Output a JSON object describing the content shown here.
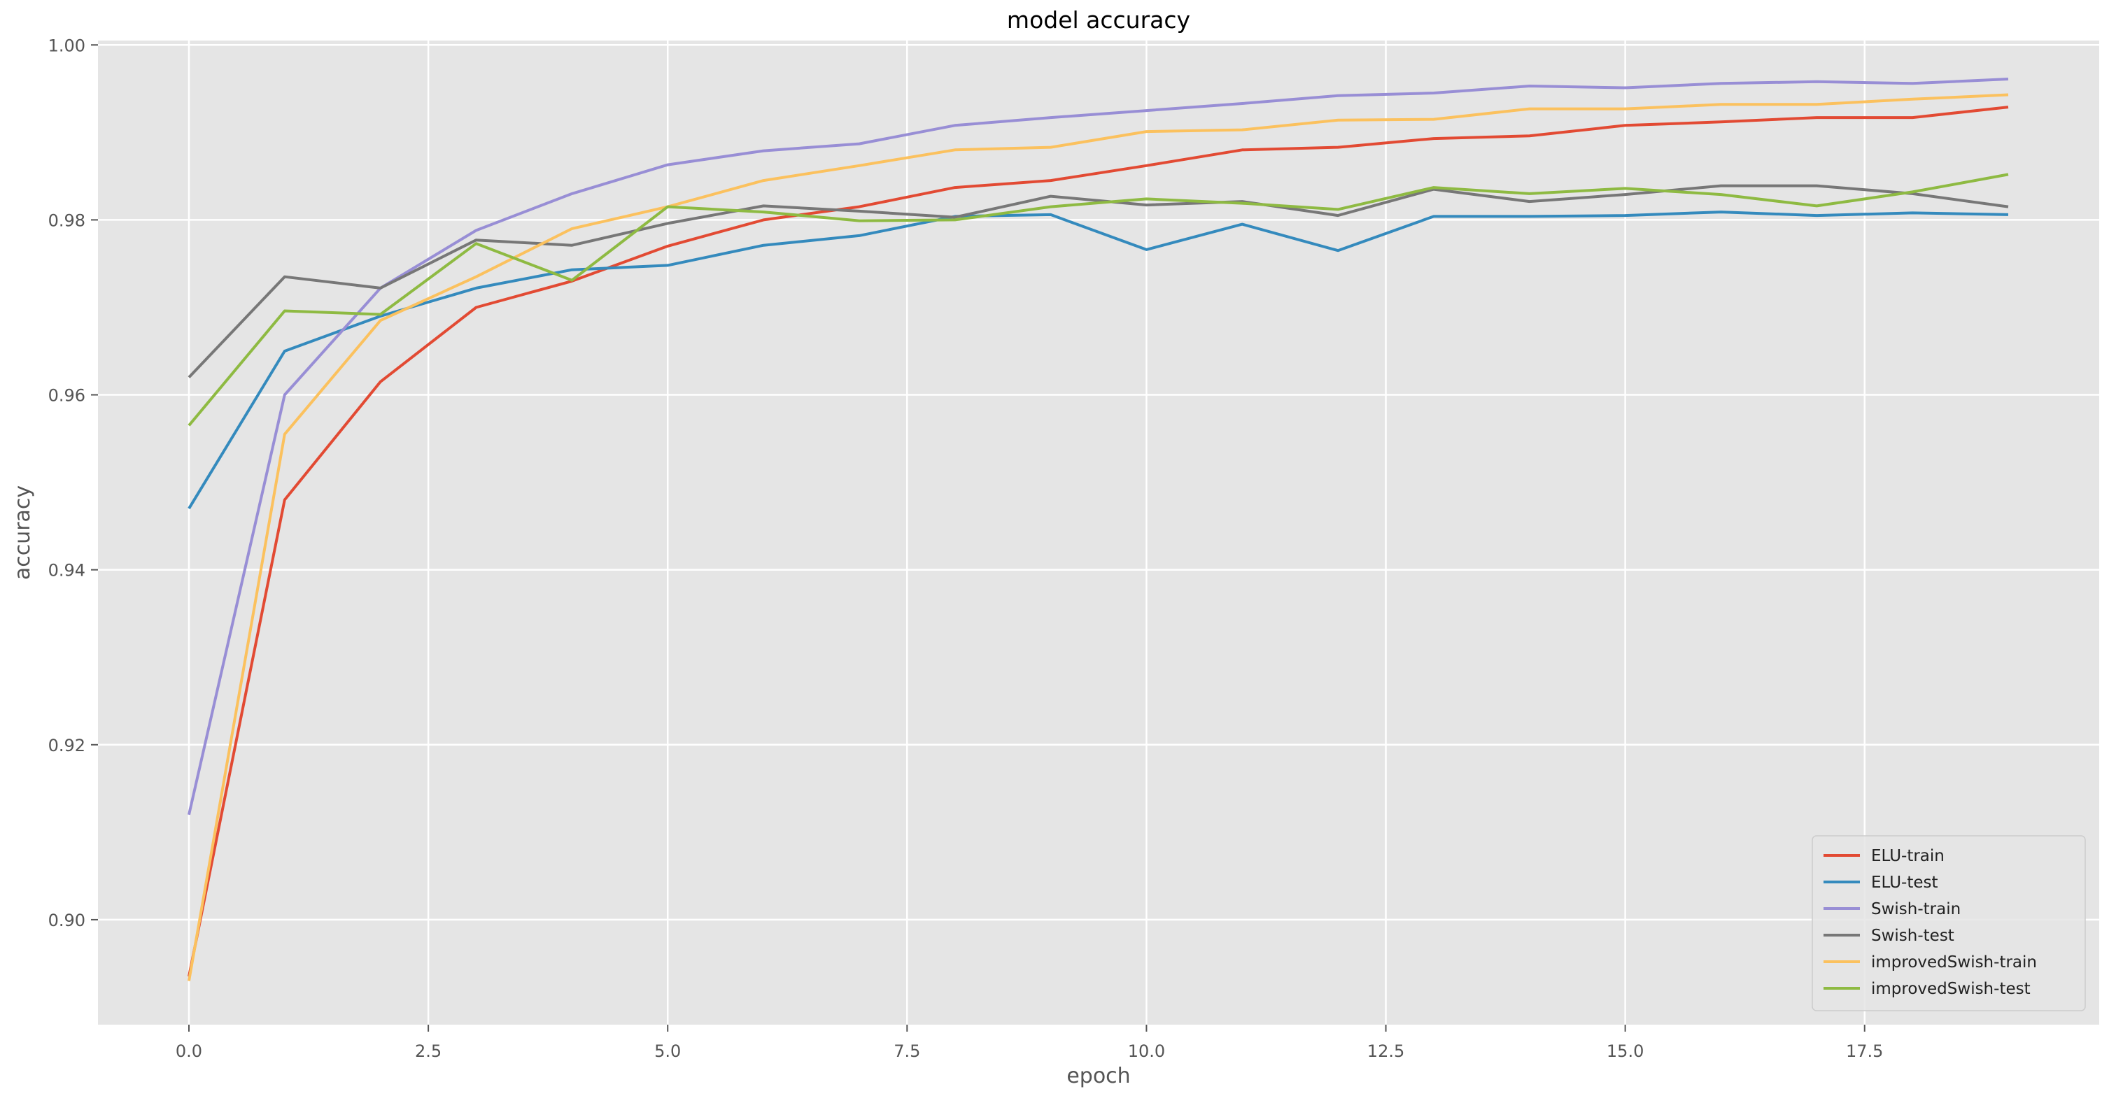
{
  "chart_data": {
    "type": "line",
    "title": "model accuracy",
    "xlabel": "epoch",
    "ylabel": "accuracy",
    "xlim": [
      -0.95,
      19.95
    ],
    "ylim": [
      0.888,
      1.0005
    ],
    "xticks": [
      0.0,
      2.5,
      5.0,
      7.5,
      10.0,
      12.5,
      15.0,
      17.5
    ],
    "xtick_labels": [
      "0.0",
      "2.5",
      "5.0",
      "7.5",
      "10.0",
      "12.5",
      "15.0",
      "17.5"
    ],
    "yticks": [
      0.9,
      0.92,
      0.94,
      0.96,
      0.98,
      1.0
    ],
    "ytick_labels": [
      "0.90",
      "0.92",
      "0.94",
      "0.96",
      "0.98",
      "1.00"
    ],
    "grid": true,
    "legend_position": "lower-right",
    "x": [
      0,
      1,
      2,
      3,
      4,
      5,
      6,
      7,
      8,
      9,
      10,
      11,
      12,
      13,
      14,
      15,
      16,
      17,
      18,
      19
    ],
    "series": [
      {
        "name": "ELU-train",
        "color": "#e24a33",
        "values": [
          0.8935,
          0.948,
          0.9615,
          0.97,
          0.973,
          0.977,
          0.98,
          0.9815,
          0.9837,
          0.9845,
          0.9862,
          0.988,
          0.9883,
          0.9893,
          0.9896,
          0.9908,
          0.9912,
          0.9917,
          0.9917,
          0.9929
        ]
      },
      {
        "name": "ELU-test",
        "color": "#348abd",
        "values": [
          0.947,
          0.965,
          0.969,
          0.9722,
          0.9743,
          0.9748,
          0.9771,
          0.9782,
          0.9804,
          0.9806,
          0.9766,
          0.9795,
          0.9765,
          0.9804,
          0.9804,
          0.9805,
          0.9809,
          0.9805,
          0.9808,
          0.9806
        ]
      },
      {
        "name": "Swish-train",
        "color": "#988ed5",
        "values": [
          0.912,
          0.96,
          0.9722,
          0.9788,
          0.983,
          0.9863,
          0.9879,
          0.9887,
          0.9908,
          0.9917,
          0.9925,
          0.9933,
          0.9942,
          0.9945,
          0.9953,
          0.9951,
          0.9956,
          0.9958,
          0.9956,
          0.9961
        ]
      },
      {
        "name": "Swish-test",
        "color": "#777777",
        "values": [
          0.962,
          0.9735,
          0.9722,
          0.9777,
          0.9771,
          0.9796,
          0.9816,
          0.981,
          0.9803,
          0.9827,
          0.9817,
          0.9821,
          0.9805,
          0.9835,
          0.9821,
          0.9829,
          0.9839,
          0.9839,
          0.983,
          0.9815
        ]
      },
      {
        "name": "improvedSwish-train",
        "color": "#fbc15e",
        "values": [
          0.893,
          0.9555,
          0.9685,
          0.9735,
          0.979,
          0.9815,
          0.9845,
          0.9862,
          0.988,
          0.9883,
          0.9901,
          0.9903,
          0.9914,
          0.9915,
          0.9927,
          0.9927,
          0.9932,
          0.9932,
          0.9938,
          0.9943
        ]
      },
      {
        "name": "improvedSwish-test",
        "color": "#8eba42",
        "values": [
          0.9565,
          0.9696,
          0.9692,
          0.9773,
          0.9731,
          0.9815,
          0.9809,
          0.9799,
          0.98,
          0.9815,
          0.9824,
          0.9819,
          0.9812,
          0.9837,
          0.983,
          0.9836,
          0.9829,
          0.9816,
          0.9832,
          0.9852
        ]
      }
    ],
    "style": {
      "plot_background": "#e5e5e5",
      "grid_color": "#ffffff",
      "tick_color": "#555555",
      "label_color": "#555555",
      "title_color": "#000000"
    }
  }
}
